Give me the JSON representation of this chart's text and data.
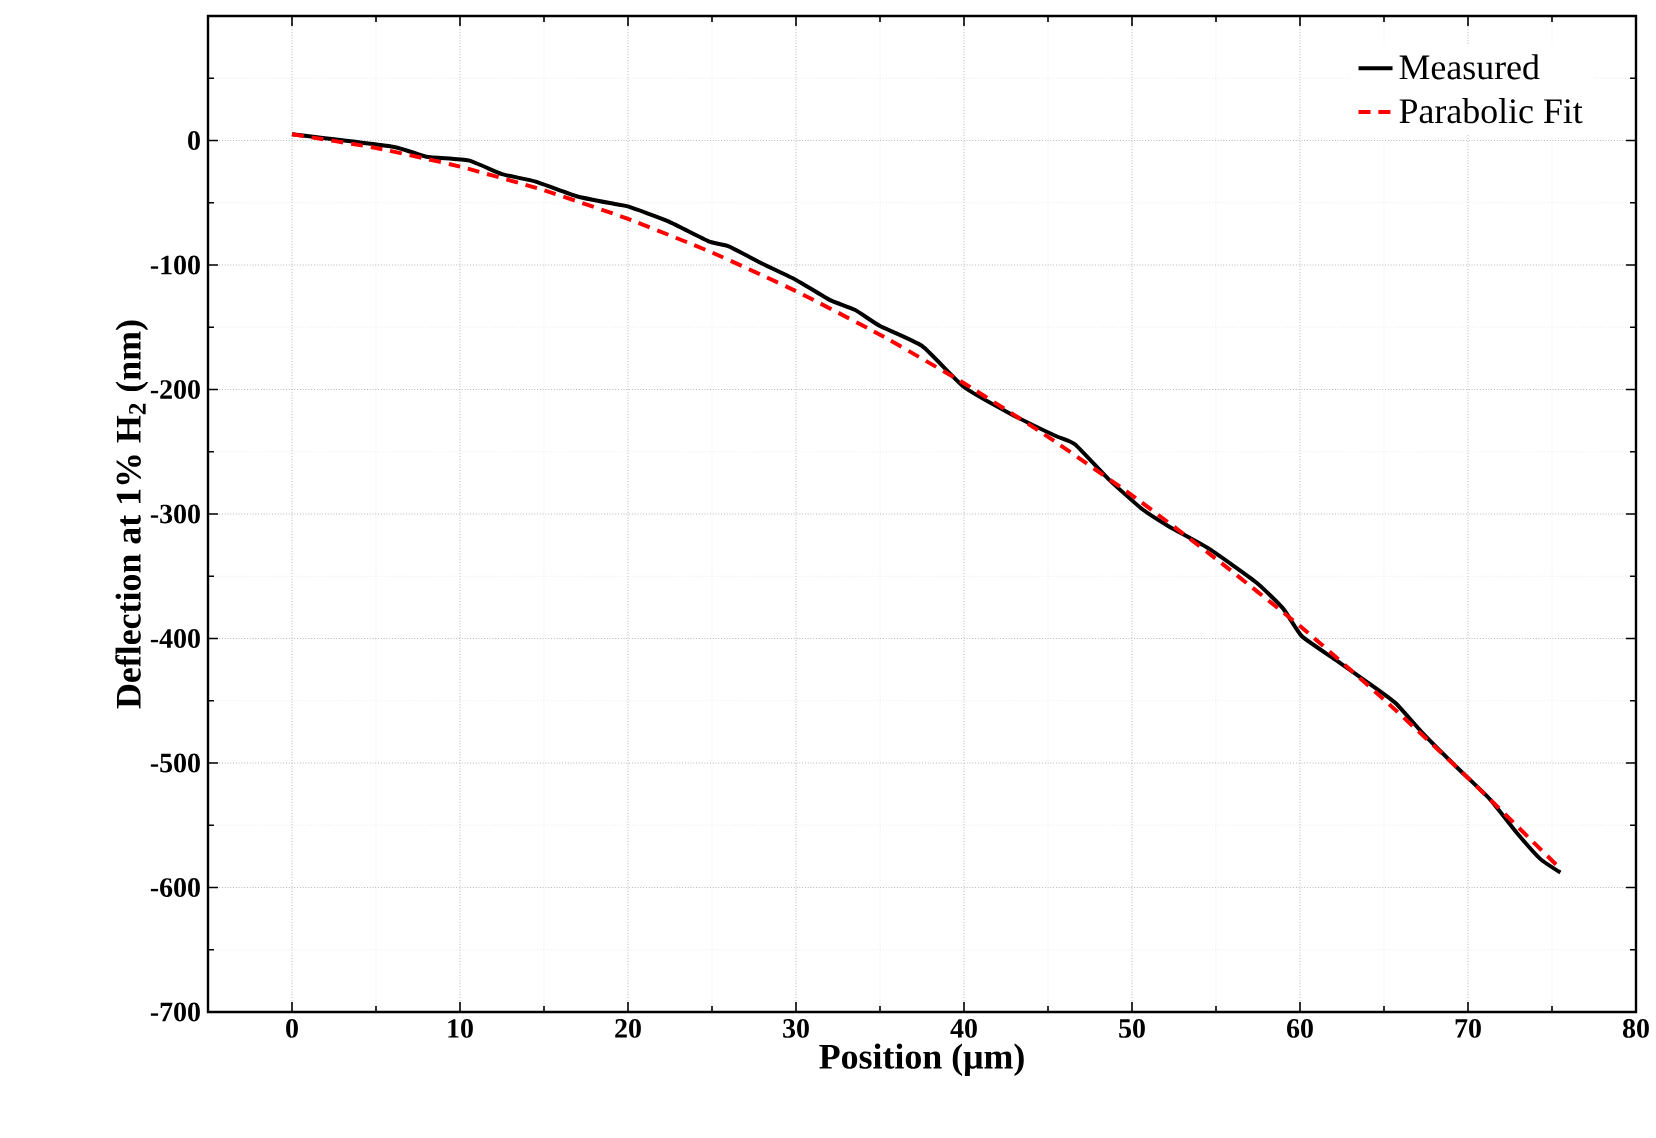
{
  "chart_data": {
    "type": "line",
    "xlabel": "Position (μm)",
    "ylabel": "Deflection at 1% H$_{2}$ (nm)",
    "xlim": [
      -5,
      80
    ],
    "ylim": [
      -700,
      100
    ],
    "xticks": [
      0,
      10,
      20,
      30,
      40,
      50,
      60,
      70,
      80
    ],
    "yticks": [
      -700,
      -600,
      -500,
      -400,
      -300,
      -200,
      -100,
      0,
      {
        "value": 100,
        "label": null
      }
    ],
    "grid": true,
    "legend": "top right",
    "series": [
      {
        "name": "Measured",
        "color": "#000000",
        "line_style": "solid",
        "x": [
          0,
          6,
          8,
          10.5,
          12.5,
          14.5,
          17,
          19.2,
          20,
          22.4,
          24.8,
          26,
          28,
          30,
          32,
          33.5,
          35,
          37.5,
          40,
          42.7,
          45.4,
          46.6,
          48.6,
          50.6,
          52.2,
          54.6,
          57.4,
          59,
          60.1,
          62.1,
          64.1,
          65.7,
          67.3,
          69.3,
          71.3,
          72.9,
          74.3,
          75.5
        ],
        "values": [
          5,
          -5,
          -13,
          -16,
          -27,
          -33,
          -45,
          -51,
          -53,
          -65,
          -81,
          -85,
          -99,
          -112,
          -128,
          -136,
          -149,
          -165,
          -198,
          -219,
          -237,
          -244,
          -272,
          -296,
          -310,
          -328,
          -355,
          -376,
          -398,
          -417,
          -436,
          -452,
          -476,
          -503,
          -529,
          -556,
          -577,
          -588
        ]
      },
      {
        "name": "Parabolic Fit",
        "color": "#ff0000",
        "line_style": "dashed",
        "x": [
          0,
          5,
          10,
          15,
          20,
          25,
          30,
          35,
          40,
          45,
          50,
          55,
          60,
          65,
          70,
          75.5
        ],
        "values": [
          5,
          -6,
          -21,
          -40,
          -63,
          -90,
          -121,
          -156,
          -195,
          -238,
          -285,
          -336,
          -390,
          -449,
          -512,
          -585
        ]
      }
    ]
  }
}
